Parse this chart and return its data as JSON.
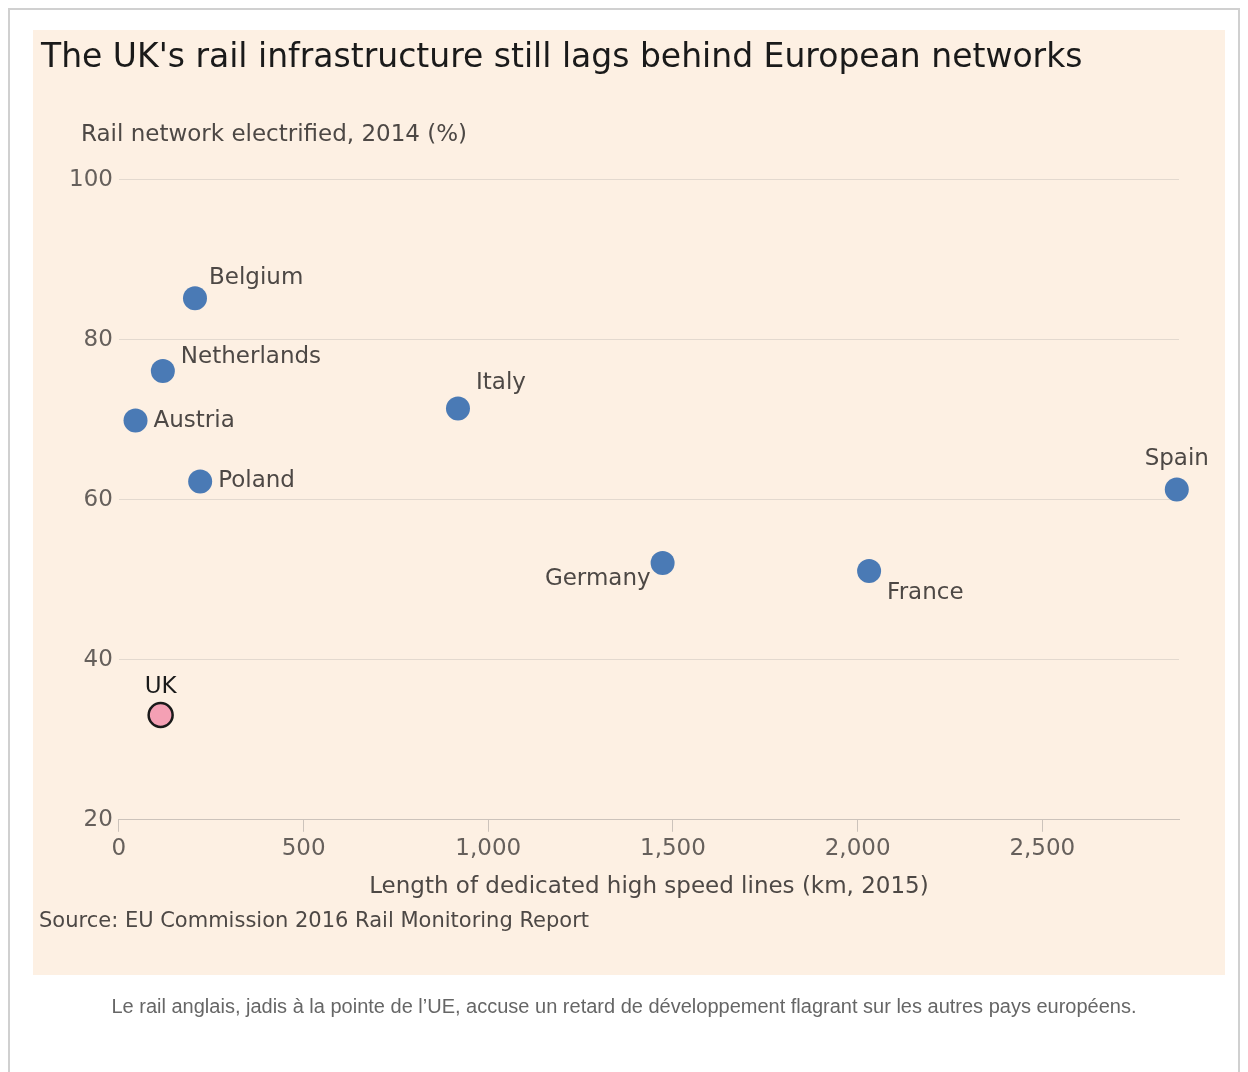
{
  "chart_data": {
    "type": "scatter",
    "title": "The UK's rail infrastructure still lags behind European networks",
    "ylabel": "Rail network electrified, 2014 (%)",
    "xlabel": "Length of dedicated high speed lines (km, 2015)",
    "series": [
      {
        "color": "#4a7ab5",
        "x": [
          206,
          119,
          45,
          220,
          918,
          1472,
          2031,
          2864
        ],
        "values": [
          85.2,
          76.1,
          69.9,
          62.3,
          71.4,
          52.1,
          51.1,
          61.3
        ]
      },
      {
        "color": "#f4a0b4",
        "x": [
          113
        ],
        "values": [
          33.1
        ]
      }
    ],
    "xlim": [
      0,
      2870
    ],
    "xticks": [
      0,
      {
        "value": 500,
        "label": "500"
      },
      {
        "value": 1000,
        "label": "1,000"
      },
      {
        "value": 1500,
        "label": "1,500"
      },
      {
        "value": 2000,
        "label": "2,000"
      },
      {
        "value": 2500,
        "label": "2,500"
      }
    ],
    "ylim": [
      20,
      100
    ],
    "yticks": [
      20,
      40,
      60,
      80,
      100
    ],
    "grid": "y",
    "marker": "circle",
    "annotations": [
      {
        "text": "Belgium",
        "x": 206,
        "y": 85.2
      },
      {
        "text": "Netherlands",
        "x": 119,
        "y": 76.1
      },
      {
        "text": "Austria",
        "x": 45,
        "y": 69.9
      },
      {
        "text": "Poland",
        "x": 220,
        "y": 62.3
      },
      {
        "text": "Italy",
        "x": 918,
        "y": 71.4
      },
      {
        "text": "Germany",
        "x": 1472,
        "y": 52.1
      },
      {
        "text": "France",
        "x": 2031,
        "y": 51.1
      },
      {
        "text": "Spain",
        "x": 2864,
        "y": 61.3
      },
      {
        "text": "UK",
        "x": 113,
        "y": 33.1
      },
      "Source: EU Commission 2016 Rail Monitoring Report",
      "Le rail anglais, jadis à la pointe de l’UE, accuse un retard de développement flagrant sur les autres pays européens."
    ]
  }
}
